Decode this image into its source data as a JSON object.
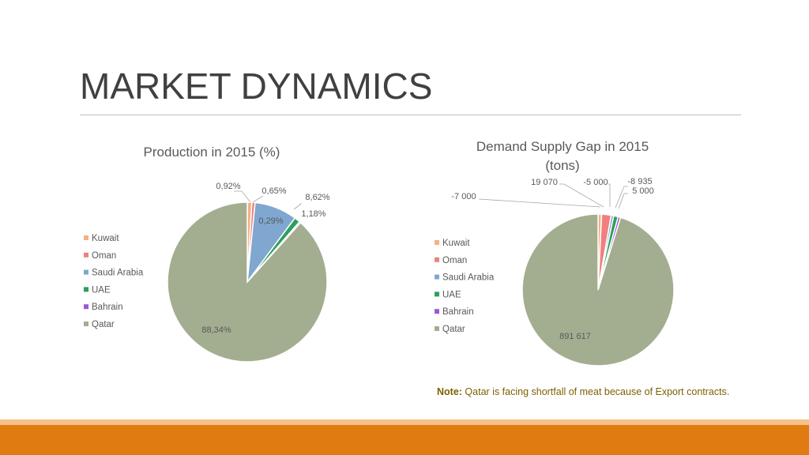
{
  "slide": {
    "title": "MARKET DYNAMICS",
    "note_label": "Note:",
    "note_text": " Qatar is facing shortfall of meat because of Export contracts."
  },
  "colors": {
    "kuwait": "#f4b183",
    "oman": "#f08080",
    "saudi_arabia": "#7fa7cf",
    "uae": "#2e9e5e",
    "bahrain": "#9b59d6",
    "qatar": "#a3ae90",
    "band_dark": "#e07b12",
    "band_light": "#f6c18a"
  },
  "chart_data": [
    {
      "type": "pie",
      "title": "Production in 2015 (%)",
      "categories": [
        "Kuwait",
        "Oman",
        "Saudi Arabia",
        "UAE",
        "Bahrain",
        "Qatar"
      ],
      "values": [
        0.92,
        0.65,
        8.62,
        1.18,
        0.29,
        88.34
      ],
      "labels": [
        "0,92%",
        "0,65%",
        "8,62%",
        "1,18%",
        "0,29%",
        "88,34%"
      ],
      "legend": "left"
    },
    {
      "type": "pie",
      "title": "Demand Supply Gap in 2015 (tons)",
      "categories": [
        "Kuwait",
        "Oman",
        "Saudi Arabia",
        "UAE",
        "Bahrain",
        "Qatar"
      ],
      "values": [
        -7000,
        19070,
        -5000,
        -8935,
        5000,
        891617
      ],
      "labels": [
        "-7 000",
        "19 070",
        "-5 000",
        "-8 935",
        "5 000",
        "891 617"
      ],
      "legend": "left"
    }
  ]
}
